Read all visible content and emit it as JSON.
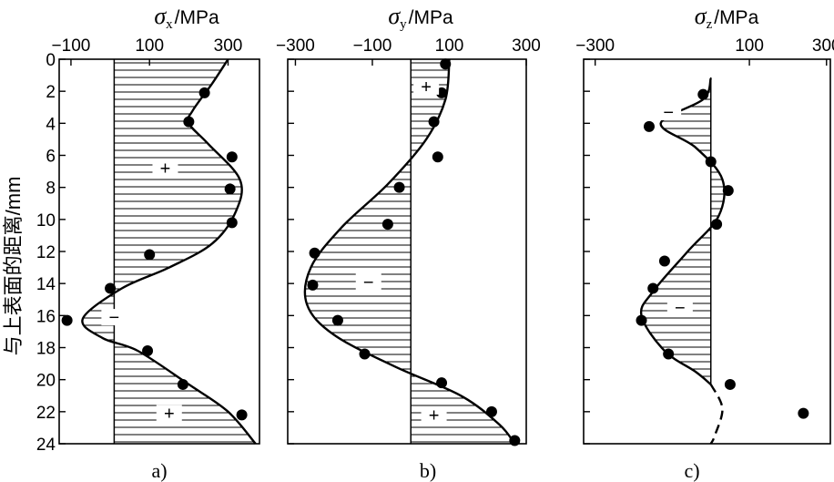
{
  "y_axis_label": "与上表面的距离/mm",
  "chart_data": [
    {
      "type": "line",
      "panel_label": "a)",
      "title": "σx/MPa",
      "title_symbol": "σ",
      "title_subscript": "x",
      "title_unit": "/MPa",
      "xlim": [
        -130,
        380
      ],
      "ylim": [
        0,
        24
      ],
      "x_ticks": [
        -100,
        100,
        300
      ],
      "x_tick_labels": [
        "−100",
        "100",
        "300"
      ],
      "y_ticks": [
        0,
        2,
        4,
        6,
        8,
        10,
        12,
        14,
        16,
        18,
        20,
        22,
        24
      ],
      "y_tick_labels": [
        "0",
        "2",
        "4",
        "6",
        "8",
        "10",
        "12",
        "14",
        "16",
        "18",
        "20",
        "22",
        "24"
      ],
      "fit_curve": [
        [
          300,
          0
        ],
        [
          260,
          1.5
        ],
        [
          210,
          3.2
        ],
        [
          200,
          4.0
        ],
        [
          250,
          5.3
        ],
        [
          330,
          7.5
        ],
        [
          320,
          9.5
        ],
        [
          260,
          11.5
        ],
        [
          150,
          13.0
        ],
        [
          30,
          14.3
        ],
        [
          -70,
          16.2
        ],
        [
          -20,
          17.4
        ],
        [
          70,
          18.2
        ],
        [
          200,
          20.3
        ],
        [
          300,
          22.0
        ],
        [
          370,
          24.0
        ]
      ],
      "dashed_curve": [],
      "points": [
        [
          240,
          2.1
        ],
        [
          200,
          3.9
        ],
        [
          310,
          6.1
        ],
        [
          305,
          8.1
        ],
        [
          310,
          10.2
        ],
        [
          100,
          12.2
        ],
        [
          0,
          14.3
        ],
        [
          -110,
          16.3
        ],
        [
          95,
          18.2
        ],
        [
          185,
          20.3
        ],
        [
          335,
          22.2
        ]
      ],
      "zero_reference": 10,
      "sign_labels": [
        {
          "text": "+",
          "x": 140,
          "y": 6.8
        },
        {
          "text": "−",
          "x": 10,
          "y": 16.1
        },
        {
          "text": "+",
          "x": 150,
          "y": 22.1
        }
      ],
      "grid": false,
      "legend": "none"
    },
    {
      "type": "line",
      "panel_label": "b)",
      "title": "σy/MPa",
      "title_symbol": "σ",
      "title_subscript": "y",
      "title_unit": "/MPa",
      "xlim": [
        -320,
        300
      ],
      "ylim": [
        0,
        24
      ],
      "x_ticks": [
        -300,
        -100,
        100,
        300
      ],
      "x_tick_labels": [
        "−300",
        "−100",
        "100",
        "300"
      ],
      "y_ticks": [
        0,
        2,
        4,
        6,
        8,
        10,
        12,
        14,
        16,
        18,
        20,
        22,
        24
      ],
      "y_tick_labels": [
        "0",
        "2",
        "4",
        "6",
        "8",
        "10",
        "12",
        "14",
        "16",
        "18",
        "20",
        "22",
        "24"
      ],
      "fit_curve": [
        [
          100,
          0
        ],
        [
          90,
          2.5
        ],
        [
          40,
          5.0
        ],
        [
          -60,
          7.8
        ],
        [
          -180,
          10.5
        ],
        [
          -260,
          13.0
        ],
        [
          -270,
          15.3
        ],
        [
          -200,
          17.2
        ],
        [
          -40,
          19.2
        ],
        [
          130,
          21.0
        ],
        [
          230,
          22.8
        ],
        [
          270,
          24.0
        ]
      ],
      "dashed_curve": [],
      "points": [
        [
          90,
          0.3
        ],
        [
          80,
          2.1
        ],
        [
          60,
          3.9
        ],
        [
          70,
          6.1
        ],
        [
          -30,
          8.0
        ],
        [
          -60,
          10.3
        ],
        [
          -250,
          12.1
        ],
        [
          -255,
          14.1
        ],
        [
          -190,
          16.3
        ],
        [
          -120,
          18.4
        ],
        [
          80,
          20.2
        ],
        [
          210,
          22.0
        ],
        [
          270,
          23.8
        ]
      ],
      "zero_reference": 0,
      "sign_labels": [
        {
          "text": "+",
          "x": 40,
          "y": 1.7
        },
        {
          "text": "−",
          "x": -110,
          "y": 13.9
        },
        {
          "text": "+",
          "x": 60,
          "y": 22.2
        }
      ],
      "grid": false,
      "legend": "none"
    },
    {
      "type": "line",
      "panel_label": "c)",
      "title": "σz/MPa",
      "title_symbol": "σ",
      "title_subscript": "z",
      "title_unit": "/MPa",
      "xlim": [
        -330,
        310
      ],
      "ylim": [
        0,
        24
      ],
      "x_ticks": [
        -300,
        100,
        300
      ],
      "x_tick_labels": [
        "−300",
        "100",
        "300"
      ],
      "y_ticks": [
        0,
        2,
        4,
        6,
        8,
        10,
        12,
        14,
        16,
        18,
        20,
        22,
        24
      ],
      "y_tick_labels": [
        "0",
        "2",
        "4",
        "6",
        "8",
        "10",
        "12",
        "14",
        "16",
        "18",
        "20",
        "22",
        "24"
      ],
      "fit_curve": [
        [
          0,
          1.2
        ],
        [
          -20,
          2.5
        ],
        [
          -130,
          4.0
        ],
        [
          -40,
          5.5
        ],
        [
          30,
          7.5
        ],
        [
          20,
          9.8
        ],
        [
          -60,
          12.0
        ],
        [
          -150,
          14.5
        ],
        [
          -180,
          16.0
        ],
        [
          -120,
          18.2
        ],
        [
          -40,
          19.5
        ],
        [
          0,
          20.3
        ]
      ],
      "dashed_curve": [
        [
          0,
          20.3
        ],
        [
          30,
          21.8
        ],
        [
          10,
          23.5
        ],
        [
          0,
          24.0
        ]
      ],
      "points": [
        [
          -20,
          2.2
        ],
        [
          -160,
          4.2
        ],
        [
          0,
          6.4
        ],
        [
          45,
          8.2
        ],
        [
          15,
          10.3
        ],
        [
          -120,
          12.6
        ],
        [
          -150,
          14.3
        ],
        [
          -180,
          16.3
        ],
        [
          -110,
          18.4
        ],
        [
          50,
          20.3
        ],
        [
          240,
          22.1
        ]
      ],
      "zero_reference": 0,
      "sign_labels": [
        {
          "text": "−",
          "x": -110,
          "y": 3.3
        },
        {
          "text": "−",
          "x": -80,
          "y": 15.5
        }
      ],
      "grid": false,
      "legend": "none"
    }
  ]
}
